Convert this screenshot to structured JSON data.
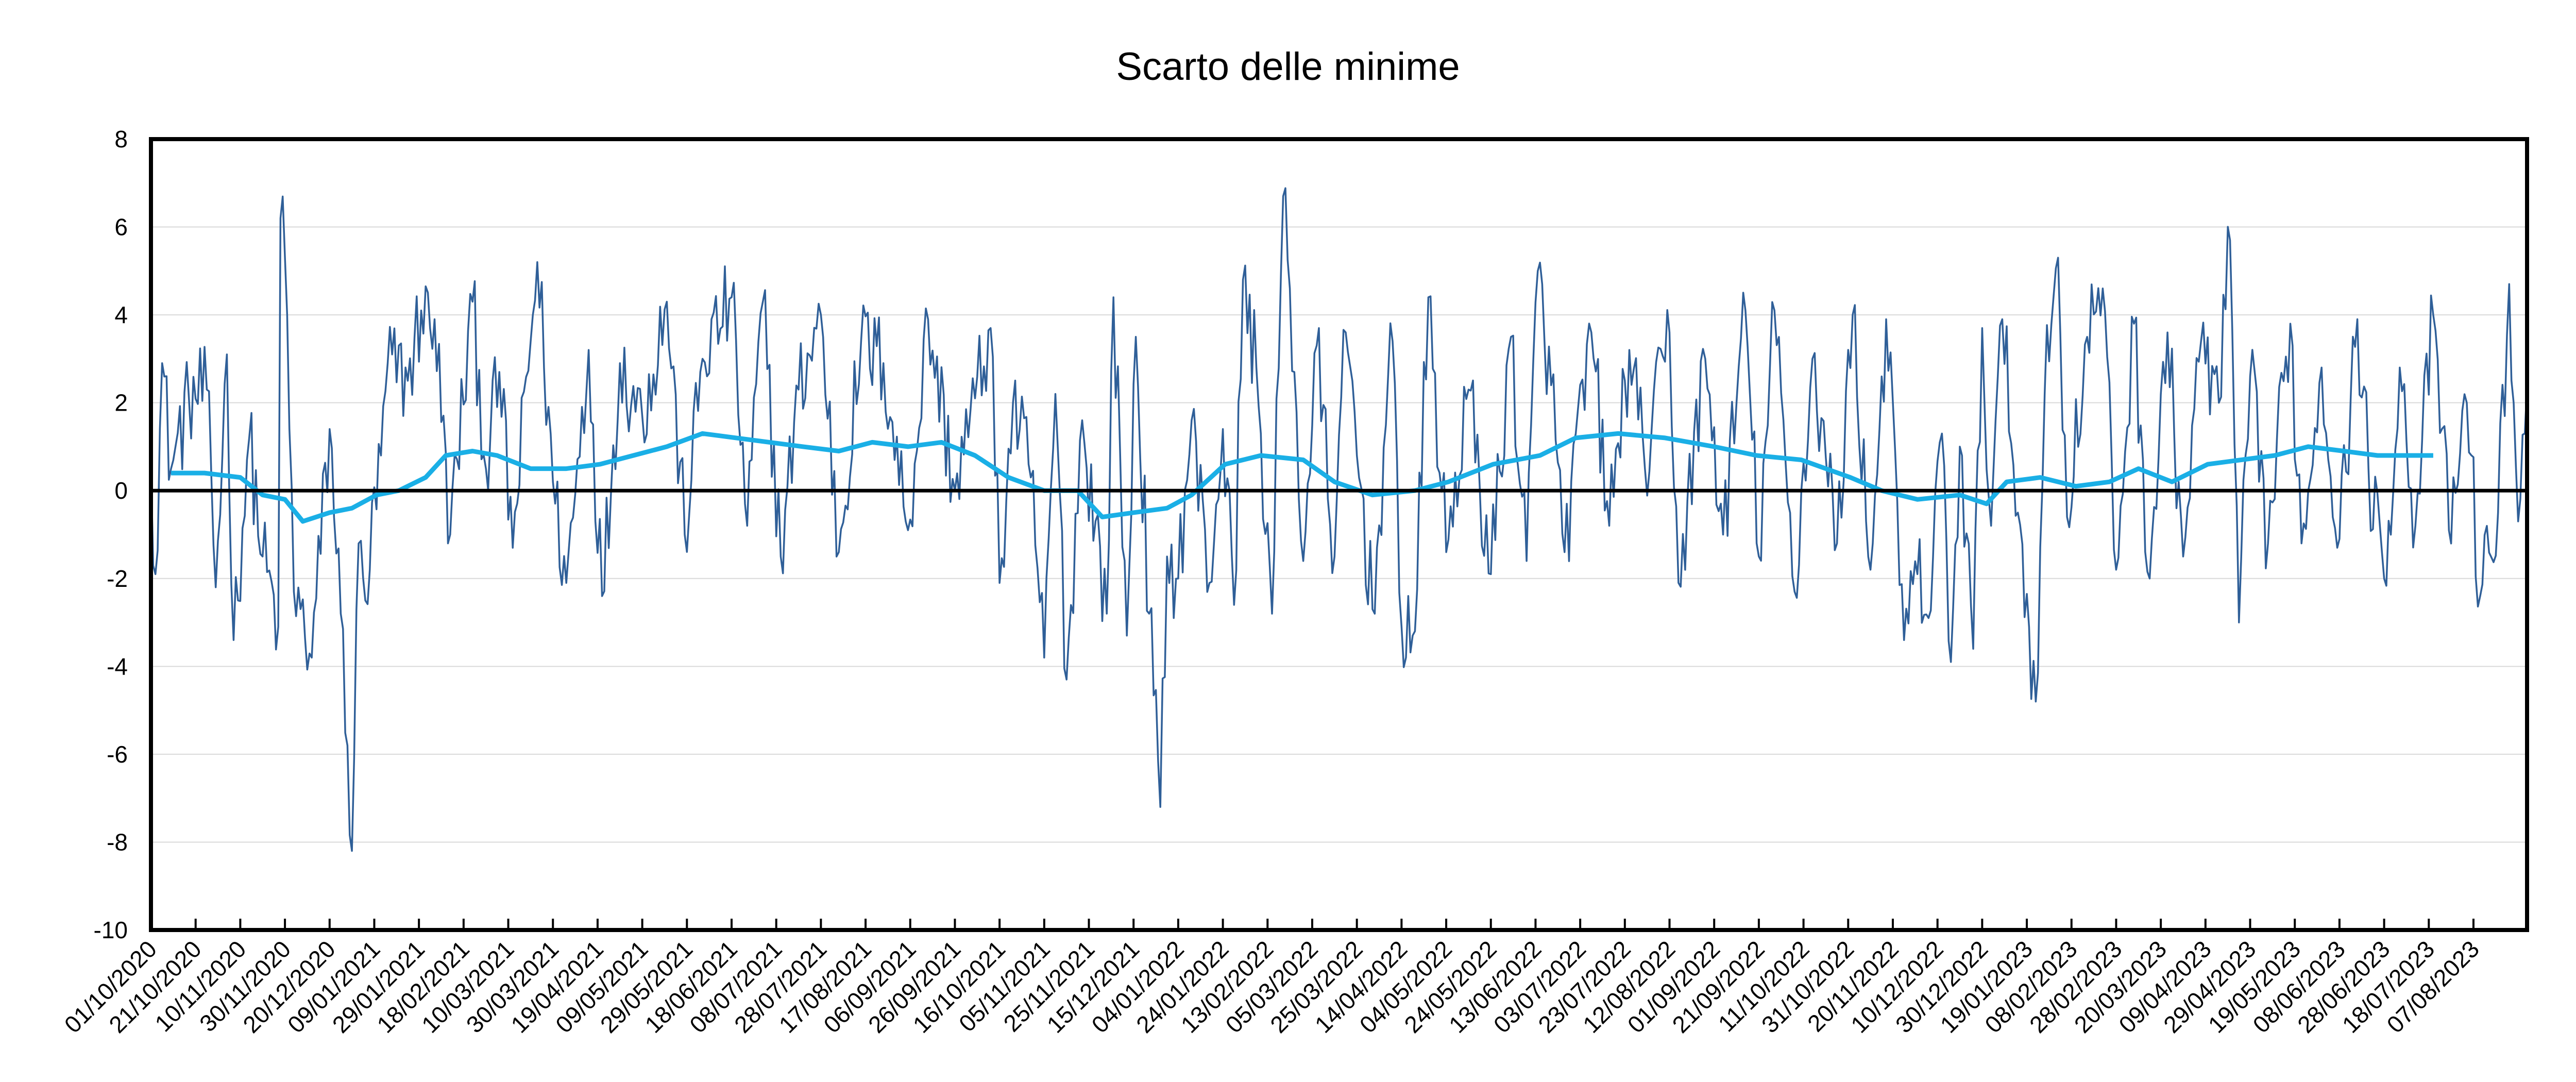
{
  "chart_data": {
    "type": "line",
    "title": "Scarto delle minime",
    "xlabel": "",
    "ylabel": "",
    "ylim": [
      -10,
      8
    ],
    "yticks": [
      -10,
      -8,
      -6,
      -4,
      -2,
      0,
      2,
      4,
      6,
      8
    ],
    "grid": true,
    "legend": "none",
    "x_start_date": "01/10/2020",
    "x_end_date": "31/08/2023",
    "xtick_labels": [
      "01/10/2020",
      "21/10/2020",
      "10/11/2020",
      "30/11/2020",
      "20/12/2020",
      "09/01/2021",
      "29/01/2021",
      "18/02/2021",
      "10/03/2021",
      "30/03/2021",
      "19/04/2021",
      "09/05/2021",
      "29/05/2021",
      "18/06/2021",
      "08/07/2021",
      "28/07/2021",
      "17/08/2021",
      "06/09/2021",
      "26/09/2021",
      "16/10/2021",
      "05/11/2021",
      "25/11/2021",
      "15/12/2021",
      "04/01/2022",
      "24/01/2022",
      "13/02/2022",
      "05/03/2022",
      "25/03/2022",
      "14/04/2022",
      "04/05/2022",
      "24/05/2022",
      "13/06/2022",
      "03/07/2022",
      "23/07/2022",
      "12/08/2022",
      "01/09/2022",
      "21/09/2022",
      "11/10/2022",
      "31/10/2022",
      "20/11/2022",
      "10/12/2022",
      "30/12/2022",
      "19/01/2023",
      "08/02/2023",
      "28/02/2023",
      "20/03/2023",
      "09/04/2023",
      "29/04/2023",
      "19/05/2023",
      "08/06/2023",
      "28/06/2023",
      "18/07/2023",
      "07/08/2023"
    ],
    "series": [
      {
        "color": "#2F5F98",
        "style": "thin",
        "keypoints": [
          [
            "01/10/2020",
            0.6
          ],
          [
            "03/10/2020",
            -1.9
          ],
          [
            "06/10/2020",
            2.9
          ],
          [
            "10/10/2020",
            0.5
          ],
          [
            "18/10/2020",
            2.1
          ],
          [
            "26/10/2020",
            2.3
          ],
          [
            "30/10/2020",
            -2.2
          ],
          [
            "04/11/2020",
            3.1
          ],
          [
            "07/11/2020",
            -3.4
          ],
          [
            "14/11/2020",
            1.2
          ],
          [
            "20/11/2020",
            -1.5
          ],
          [
            "27/11/2020",
            -3.1
          ],
          [
            "28/11/2020",
            6.2
          ],
          [
            "30/11/2020",
            5.3
          ],
          [
            "04/12/2020",
            -2.3
          ],
          [
            "12/12/2020",
            -3.8
          ],
          [
            "20/12/2020",
            1.4
          ],
          [
            "25/12/2020",
            -2.8
          ],
          [
            "28/12/2020",
            -5.8
          ],
          [
            "30/12/2020",
            -8.2
          ],
          [
            "02/01/2021",
            -1.2
          ],
          [
            "05/01/2021",
            -2.5
          ],
          [
            "12/01/2021",
            0.8
          ],
          [
            "15/01/2021",
            2.9
          ],
          [
            "24/01/2021",
            2.5
          ],
          [
            "30/01/2021",
            4.1
          ],
          [
            "05/02/2021",
            3.9
          ],
          [
            "12/02/2021",
            -1.0
          ],
          [
            "22/02/2021",
            4.3
          ],
          [
            "28/02/2021",
            0.5
          ],
          [
            "06/03/2021",
            2.7
          ],
          [
            "12/03/2021",
            -1.3
          ],
          [
            "23/03/2021",
            5.2
          ],
          [
            "30/03/2021",
            0.2
          ],
          [
            "05/04/2021",
            -2.1
          ],
          [
            "15/04/2021",
            3.2
          ],
          [
            "21/04/2021",
            -2.4
          ],
          [
            "29/04/2021",
            2.9
          ],
          [
            "09/05/2021",
            1.7
          ],
          [
            "20/05/2021",
            4.3
          ],
          [
            "28/05/2021",
            -1.0
          ],
          [
            "05/06/2021",
            3.0
          ],
          [
            "18/06/2021",
            4.4
          ],
          [
            "25/06/2021",
            -0.8
          ],
          [
            "02/07/2021",
            4.3
          ],
          [
            "10/07/2021",
            -1.5
          ],
          [
            "18/07/2021",
            2.3
          ],
          [
            "28/07/2021",
            4.0
          ],
          [
            "05/08/2021",
            -1.4
          ],
          [
            "15/08/2021",
            3.4
          ],
          [
            "25/08/2021",
            2.9
          ],
          [
            "05/09/2021",
            -0.9
          ],
          [
            "14/09/2021",
            3.9
          ],
          [
            "26/09/2021",
            0.0
          ],
          [
            "05/10/2021",
            2.1
          ],
          [
            "12/10/2021",
            3.7
          ],
          [
            "16/10/2021",
            -2.1
          ],
          [
            "22/10/2021",
            2.0
          ],
          [
            "30/10/2021",
            0.3
          ],
          [
            "05/11/2021",
            -3.8
          ],
          [
            "10/11/2021",
            2.2
          ],
          [
            "15/11/2021",
            -4.3
          ],
          [
            "22/11/2021",
            1.6
          ],
          [
            "03/12/2021",
            -2.8
          ],
          [
            "06/12/2021",
            4.4
          ],
          [
            "12/12/2021",
            -3.3
          ],
          [
            "16/12/2021",
            3.5
          ],
          [
            "22/12/2021",
            -2.8
          ],
          [
            "27/12/2021",
            -7.2
          ],
          [
            "30/12/2021",
            -1.5
          ],
          [
            "04/01/2022",
            -2.0
          ],
          [
            "10/01/2022",
            1.6
          ],
          [
            "18/01/2022",
            -2.1
          ],
          [
            "24/01/2022",
            1.4
          ],
          [
            "29/01/2022",
            -2.6
          ],
          [
            "02/02/2022",
            4.8
          ],
          [
            "08/02/2022",
            2.8
          ],
          [
            "15/02/2022",
            -2.8
          ],
          [
            "20/02/2022",
            6.7
          ],
          [
            "23/02/2022",
            4.6
          ],
          [
            "01/03/2022",
            -1.6
          ],
          [
            "07/03/2022",
            3.3
          ],
          [
            "15/03/2022",
            -1.5
          ],
          [
            "20/03/2022",
            3.6
          ],
          [
            "01/04/2022",
            -2.7
          ],
          [
            "10/04/2022",
            3.4
          ],
          [
            "14/04/2022",
            -3.1
          ],
          [
            "20/04/2022",
            -3.2
          ],
          [
            "26/04/2022",
            4.4
          ],
          [
            "04/05/2022",
            -1.4
          ],
          [
            "14/05/2022",
            2.3
          ],
          [
            "24/05/2022",
            -1.9
          ],
          [
            "02/06/2022",
            3.5
          ],
          [
            "09/06/2022",
            -1.6
          ],
          [
            "14/06/2022",
            5.0
          ],
          [
            "20/06/2022",
            2.4
          ],
          [
            "26/06/2022",
            -1.4
          ],
          [
            "08/07/2022",
            3.6
          ],
          [
            "16/07/2022",
            -0.8
          ],
          [
            "25/07/2022",
            3.2
          ],
          [
            "01/08/2022",
            0.5
          ],
          [
            "12/08/2022",
            3.6
          ],
          [
            "16/08/2022",
            -2.1
          ],
          [
            "28/08/2022",
            3.0
          ],
          [
            "05/09/2022",
            -1.0
          ],
          [
            "15/09/2022",
            4.1
          ],
          [
            "21/09/2022",
            -1.5
          ],
          [
            "28/09/2022",
            4.1
          ],
          [
            "07/10/2022",
            -2.3
          ],
          [
            "15/10/2022",
            3.0
          ],
          [
            "26/10/2022",
            -1.2
          ],
          [
            "02/11/2022",
            4.0
          ],
          [
            "10/11/2022",
            -1.8
          ],
          [
            "17/11/2022",
            3.9
          ],
          [
            "25/11/2022",
            -3.4
          ],
          [
            "01/12/2022",
            -1.9
          ],
          [
            "06/12/2022",
            -2.9
          ],
          [
            "12/12/2022",
            1.3
          ],
          [
            "16/12/2022",
            -3.9
          ],
          [
            "20/12/2022",
            1.0
          ],
          [
            "26/12/2022",
            -3.6
          ],
          [
            "30/12/2022",
            3.7
          ],
          [
            "03/01/2023",
            -0.8
          ],
          [
            "08/01/2023",
            3.9
          ],
          [
            "15/01/2023",
            -0.5
          ],
          [
            "20/01/2023",
            -3.1
          ],
          [
            "23/01/2023",
            -4.8
          ],
          [
            "27/01/2023",
            2.2
          ],
          [
            "02/02/2023",
            5.3
          ],
          [
            "06/02/2023",
            -0.6
          ],
          [
            "15/02/2023",
            3.5
          ],
          [
            "22/02/2023",
            4.6
          ],
          [
            "28/02/2023",
            -1.8
          ],
          [
            "08/03/2023",
            3.8
          ],
          [
            "15/03/2023",
            -2.0
          ],
          [
            "23/03/2023",
            3.6
          ],
          [
            "30/03/2023",
            -1.5
          ],
          [
            "07/04/2023",
            3.4
          ],
          [
            "15/04/2023",
            2.0
          ],
          [
            "20/04/2023",
            5.7
          ],
          [
            "24/04/2023",
            -3.0
          ],
          [
            "29/04/2023",
            2.6
          ],
          [
            "07/05/2023",
            -1.2
          ],
          [
            "17/05/2023",
            3.8
          ],
          [
            "22/05/2023",
            -1.2
          ],
          [
            "31/05/2023",
            2.8
          ],
          [
            "08/06/2023",
            -1.1
          ],
          [
            "16/06/2023",
            3.9
          ],
          [
            "21/06/2023",
            0.5
          ],
          [
            "28/06/2023",
            -2.0
          ],
          [
            "05/07/2023",
            2.8
          ],
          [
            "12/07/2023",
            -0.8
          ],
          [
            "20/07/2023",
            4.0
          ],
          [
            "27/07/2023",
            -0.9
          ],
          [
            "04/08/2023",
            2.0
          ],
          [
            "10/08/2023",
            -2.4
          ],
          [
            "18/08/2023",
            -0.5
          ],
          [
            "23/08/2023",
            4.7
          ],
          [
            "27/08/2023",
            -0.7
          ],
          [
            "31/08/2023",
            2.4
          ]
        ]
      },
      {
        "color": "#1AAFE6",
        "style": "thick",
        "keypoints": [
          [
            "10/10/2020",
            0.4
          ],
          [
            "25/10/2020",
            0.4
          ],
          [
            "10/11/2020",
            0.3
          ],
          [
            "20/11/2020",
            -0.1
          ],
          [
            "30/11/2020",
            -0.2
          ],
          [
            "08/12/2020",
            -0.7
          ],
          [
            "20/12/2020",
            -0.5
          ],
          [
            "30/12/2020",
            -0.4
          ],
          [
            "10/01/2021",
            -0.1
          ],
          [
            "20/01/2021",
            0.0
          ],
          [
            "01/02/2021",
            0.3
          ],
          [
            "10/02/2021",
            0.8
          ],
          [
            "22/02/2021",
            0.9
          ],
          [
            "05/03/2021",
            0.8
          ],
          [
            "20/03/2021",
            0.5
          ],
          [
            "05/04/2021",
            0.5
          ],
          [
            "20/04/2021",
            0.6
          ],
          [
            "05/05/2021",
            0.8
          ],
          [
            "20/05/2021",
            1.0
          ],
          [
            "05/06/2021",
            1.3
          ],
          [
            "20/06/2021",
            1.2
          ],
          [
            "05/07/2021",
            1.1
          ],
          [
            "20/07/2021",
            1.0
          ],
          [
            "05/08/2021",
            0.9
          ],
          [
            "20/08/2021",
            1.1
          ],
          [
            "05/09/2021",
            1.0
          ],
          [
            "20/09/2021",
            1.1
          ],
          [
            "05/10/2021",
            0.8
          ],
          [
            "20/10/2021",
            0.3
          ],
          [
            "05/11/2021",
            0.0
          ],
          [
            "20/11/2021",
            0.0
          ],
          [
            "01/12/2021",
            -0.6
          ],
          [
            "15/12/2021",
            -0.5
          ],
          [
            "30/12/2021",
            -0.4
          ],
          [
            "10/01/2022",
            -0.1
          ],
          [
            "25/01/2022",
            0.6
          ],
          [
            "10/02/2022",
            0.8
          ],
          [
            "01/03/2022",
            0.7
          ],
          [
            "15/03/2022",
            0.2
          ],
          [
            "01/04/2022",
            -0.1
          ],
          [
            "20/04/2022",
            0.0
          ],
          [
            "05/05/2022",
            0.2
          ],
          [
            "25/05/2022",
            0.6
          ],
          [
            "15/06/2022",
            0.8
          ],
          [
            "01/07/2022",
            1.2
          ],
          [
            "20/07/2022",
            1.3
          ],
          [
            "10/08/2022",
            1.2
          ],
          [
            "01/09/2022",
            1.0
          ],
          [
            "20/09/2022",
            0.8
          ],
          [
            "10/10/2022",
            0.7
          ],
          [
            "01/11/2022",
            0.3
          ],
          [
            "15/11/2022",
            0.0
          ],
          [
            "01/12/2022",
            -0.2
          ],
          [
            "20/12/2022",
            -0.1
          ],
          [
            "01/01/2023",
            -0.3
          ],
          [
            "10/01/2023",
            0.2
          ],
          [
            "25/01/2023",
            0.3
          ],
          [
            "10/02/2023",
            0.1
          ],
          [
            "25/02/2023",
            0.2
          ],
          [
            "10/03/2023",
            0.5
          ],
          [
            "25/03/2023",
            0.2
          ],
          [
            "10/04/2023",
            0.6
          ],
          [
            "25/04/2023",
            0.7
          ],
          [
            "10/05/2023",
            0.8
          ],
          [
            "25/05/2023",
            1.0
          ],
          [
            "10/06/2023",
            0.9
          ],
          [
            "25/06/2023",
            0.8
          ],
          [
            "10/07/2023",
            0.8
          ],
          [
            "20/07/2023",
            0.8
          ]
        ]
      }
    ]
  }
}
